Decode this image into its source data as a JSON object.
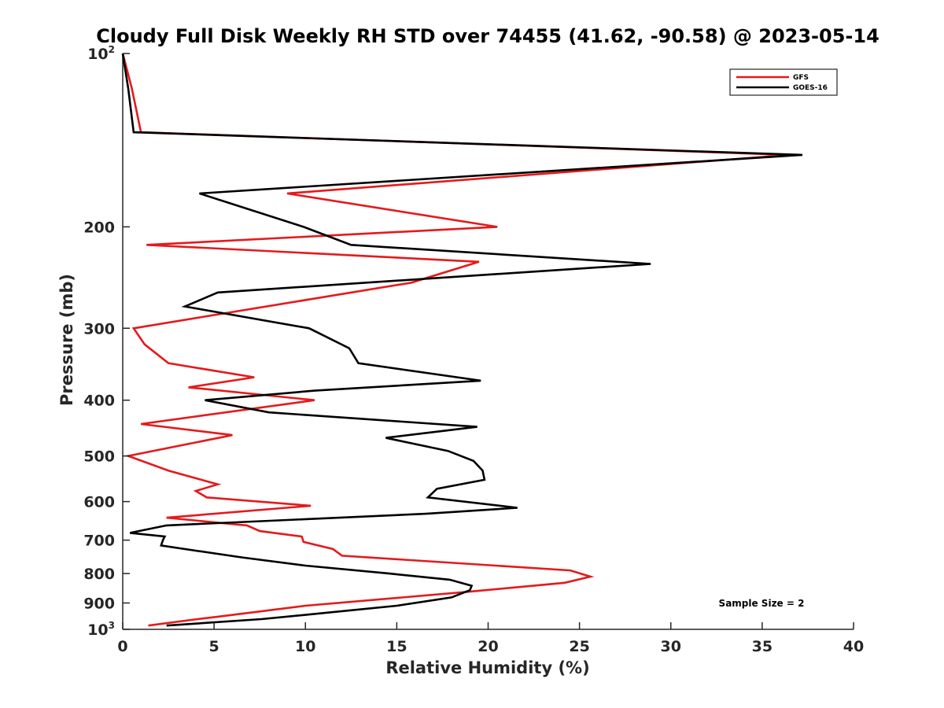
{
  "chart_data": {
    "type": "line",
    "title": "Cloudy Full Disk Weekly RH STD over 74455 (41.62, -90.58) @ 2023-05-14",
    "xlabel": "Relative Humidity (%)",
    "ylabel": "Pressure (mb)",
    "xlim": [
      0,
      40
    ],
    "ylim": [
      100,
      1000
    ],
    "y_scale": "log",
    "y_reversed": true,
    "x_ticks": [
      0,
      5,
      10,
      15,
      20,
      25,
      30,
      35,
      40
    ],
    "x_tick_labels": [
      "0",
      "5",
      "10",
      "15",
      "20",
      "25",
      "30",
      "35",
      "40"
    ],
    "y_ticks": [
      100,
      200,
      300,
      400,
      500,
      600,
      700,
      800,
      900,
      1000
    ],
    "y_tick_labels": [
      {
        "base": "10",
        "sup": "2"
      },
      {
        "base": "200",
        "sup": ""
      },
      {
        "base": "300",
        "sup": ""
      },
      {
        "base": "400",
        "sup": ""
      },
      {
        "base": "500",
        "sup": ""
      },
      {
        "base": "600",
        "sup": ""
      },
      {
        "base": "700",
        "sup": ""
      },
      {
        "base": "800",
        "sup": ""
      },
      {
        "base": "900",
        "sup": ""
      },
      {
        "base": "10",
        "sup": "3"
      }
    ],
    "grid": false,
    "legend_position": "top-right",
    "series": [
      {
        "name": "GFS",
        "color": "#e41a1c",
        "points": [
          [
            0.0,
            100
          ],
          [
            0.5,
            115
          ],
          [
            1.0,
            137
          ],
          [
            36.5,
            150
          ],
          [
            9.0,
            175
          ],
          [
            20.5,
            200
          ],
          [
            1.3,
            215
          ],
          [
            19.5,
            230
          ],
          [
            15.8,
            250
          ],
          [
            0.6,
            300
          ],
          [
            1.2,
            320
          ],
          [
            2.5,
            345
          ],
          [
            7.2,
            365
          ],
          [
            3.6,
            380
          ],
          [
            10.5,
            400
          ],
          [
            1.0,
            440
          ],
          [
            6.0,
            460
          ],
          [
            0.3,
            500
          ],
          [
            2.5,
            530
          ],
          [
            5.2,
            560
          ],
          [
            4.0,
            575
          ],
          [
            4.6,
            590
          ],
          [
            10.3,
            610
          ],
          [
            2.4,
            640
          ],
          [
            6.8,
            660
          ],
          [
            7.5,
            675
          ],
          [
            9.8,
            690
          ],
          [
            9.9,
            705
          ],
          [
            11.5,
            725
          ],
          [
            12.0,
            745
          ],
          [
            24.5,
            790
          ],
          [
            25.6,
            810
          ],
          [
            24.2,
            830
          ],
          [
            19.0,
            860
          ],
          [
            10.0,
            910
          ],
          [
            5.3,
            950
          ],
          [
            4.1,
            960
          ],
          [
            1.4,
            985
          ]
        ]
      },
      {
        "name": "GOES-16",
        "color": "#000000",
        "points": [
          [
            0.0,
            100
          ],
          [
            0.3,
            115
          ],
          [
            0.6,
            137
          ],
          [
            37.2,
            150
          ],
          [
            4.2,
            175
          ],
          [
            9.9,
            200
          ],
          [
            12.5,
            215
          ],
          [
            28.9,
            232
          ],
          [
            5.2,
            260
          ],
          [
            3.4,
            275
          ],
          [
            10.2,
            300
          ],
          [
            12.4,
            325
          ],
          [
            12.9,
            345
          ],
          [
            19.6,
            370
          ],
          [
            10.5,
            385
          ],
          [
            4.5,
            400
          ],
          [
            8.0,
            420
          ],
          [
            19.4,
            445
          ],
          [
            14.4,
            465
          ],
          [
            17.8,
            490
          ],
          [
            19.2,
            510
          ],
          [
            19.7,
            530
          ],
          [
            19.8,
            550
          ],
          [
            17.2,
            570
          ],
          [
            16.7,
            590
          ],
          [
            21.6,
            615
          ],
          [
            16.6,
            630
          ],
          [
            2.4,
            660
          ],
          [
            0.4,
            680
          ],
          [
            2.3,
            690
          ],
          [
            2.2,
            700
          ],
          [
            2.1,
            715
          ],
          [
            4.0,
            730
          ],
          [
            6.5,
            750
          ],
          [
            10.0,
            775
          ],
          [
            14.6,
            800
          ],
          [
            17.9,
            820
          ],
          [
            19.1,
            840
          ],
          [
            19.0,
            855
          ],
          [
            18.0,
            880
          ],
          [
            15.0,
            910
          ],
          [
            11.3,
            935
          ],
          [
            7.6,
            960
          ],
          [
            2.4,
            985
          ]
        ]
      }
    ],
    "annotations": [
      "Sample Size = 2"
    ]
  }
}
